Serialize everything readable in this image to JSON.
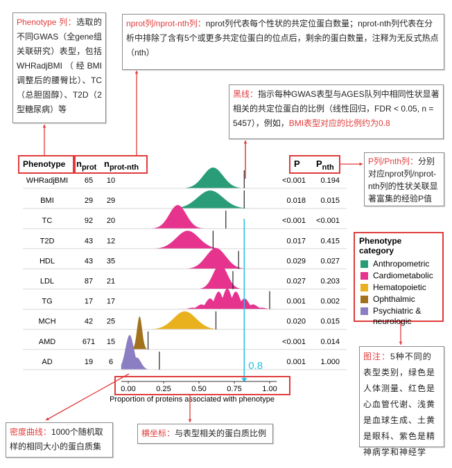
{
  "annotations": {
    "phenotype": {
      "label": "Phenotype 列：",
      "text": "选取的不同GWAS（全gene组关联研究）表型，包括WHRadjBMI（经BMI调整后的腰臀比）、TC（总胆固醇）、T2D（2型糖尿病）等"
    },
    "nprot": {
      "label": "nprot列/nprot-nth列：",
      "text": "nprot列代表每个性状的共定位蛋白数量；nprot-nth列代表在分析中排除了含有5个或更多共定位蛋白的位点后，剩余的蛋白数量，注释为无反式热点（nth）"
    },
    "blackline": {
      "label": "黑线：",
      "text": "指示每种GWAS表型与AGES队列中相同性状显著相关的共定位蛋白的比例（线性回归，FDR < 0.05, n = 5457），例如，",
      "highlight": "BMI表型对应的比例约为0.8"
    },
    "pcol": {
      "label": "P列/Pnth列：",
      "text": "分别对应nprot列/nprot-nth列的性状关联显著富集的经验P值"
    },
    "legendnote": {
      "label": "图注：",
      "text": "5种不同的表型类别，绿色是人体测量、红色是心血管代谢、浅黄是血球生成、土黄是眼科、紫色是精神病学和神经学"
    },
    "density": {
      "label": "密度曲线：",
      "text": "1000个随机取样的相同大小的蛋白质集"
    },
    "xaxis": {
      "label": "横坐标：",
      "text": "与表型相关的蛋白质比例"
    },
    "cyan_value": "0.8"
  },
  "colors": {
    "Anthropometric": "#2a9d78",
    "Cardiometabolic": "#e5338e",
    "Hematopoietic": "#e9b11d",
    "Ophthalmic": "#a3721f",
    "Psychiatric & neurologic": "#8b7ec2",
    "annotation_red": "#e03a3a",
    "cyan": "#22c3e6"
  },
  "chart_data": {
    "type": "ridgeline",
    "headers": {
      "phenotype": "Phenotype",
      "nprot": "n",
      "nprot_sub": "prot",
      "nth": "n",
      "nth_sub": "prot-nth",
      "p": "P",
      "pnth": "P",
      "pnth_sub": "nth"
    },
    "xlabel": "Proportion of proteins associated with phenotype",
    "xlim": [
      0,
      1
    ],
    "xticks": [
      "0.00",
      "0.25",
      "0.50",
      "0.75",
      "1.00"
    ],
    "legend": {
      "title": "Phenotype category",
      "placement": "right",
      "entries": [
        "Anthropometric",
        "Cardiometabolic",
        "Hematopoietic",
        "Ophthalmic",
        "Psychiatric & neurologic"
      ]
    },
    "rows": [
      {
        "phenotype": "WHRadjBMI",
        "nprot": "65",
        "nth": "10",
        "p": "<0.001",
        "pnth": "0.194",
        "category": "Anthropometric",
        "observed": 0.82,
        "density_mode": 0.6,
        "density_sd": 0.07
      },
      {
        "phenotype": "BMI",
        "nprot": "29",
        "nth": "29",
        "p": "0.018",
        "pnth": "0.015",
        "category": "Anthropometric",
        "observed": 0.82,
        "density_mode": 0.58,
        "density_sd": 0.09
      },
      {
        "phenotype": "TC",
        "nprot": "92",
        "nth": "20",
        "p": "<0.001",
        "pnth": "<0.001",
        "category": "Cardiometabolic",
        "observed": 0.69,
        "density_mode": 0.35,
        "density_sd": 0.06
      },
      {
        "phenotype": "T2D",
        "nprot": "43",
        "nth": "12",
        "p": "0.017",
        "pnth": "0.415",
        "category": "Cardiometabolic",
        "observed": 0.6,
        "density_mode": 0.42,
        "density_sd": 0.08
      },
      {
        "phenotype": "HDL",
        "nprot": "43",
        "nth": "35",
        "p": "0.029",
        "pnth": "0.027",
        "category": "Cardiometabolic",
        "observed": 0.78,
        "density_mode": 0.62,
        "density_sd": 0.07
      },
      {
        "phenotype": "LDL",
        "nprot": "87",
        "nth": "21",
        "p": "0.027",
        "pnth": "0.203",
        "category": "Cardiometabolic",
        "observed": 0.74,
        "density_mode": 0.65,
        "density_sd": 0.05
      },
      {
        "phenotype": "TG",
        "nprot": "17",
        "nth": "17",
        "p": "0.001",
        "pnth": "0.002",
        "category": "Cardiometabolic",
        "observed": 1.0,
        "density_mode": 0.7,
        "density_sd": 0.11
      },
      {
        "phenotype": "MCH",
        "nprot": "42",
        "nth": "25",
        "p": "0.020",
        "pnth": "0.015",
        "category": "Hematopoietic",
        "observed": 0.62,
        "density_mode": 0.4,
        "density_sd": 0.08
      },
      {
        "phenotype": "AMD",
        "nprot": "671",
        "nth": "15",
        "p": "<0.001",
        "pnth": "0.014",
        "category": "Ophthalmic",
        "observed": 0.14,
        "density_mode": 0.08,
        "density_sd": 0.018
      },
      {
        "phenotype": "AD",
        "nprot": "19",
        "nth": "6",
        "p": "0.001",
        "pnth": "1.000",
        "category": "Psychiatric & neurologic",
        "observed": 0.22,
        "density_mode": 0.01,
        "density_sd": 0.03
      }
    ]
  }
}
